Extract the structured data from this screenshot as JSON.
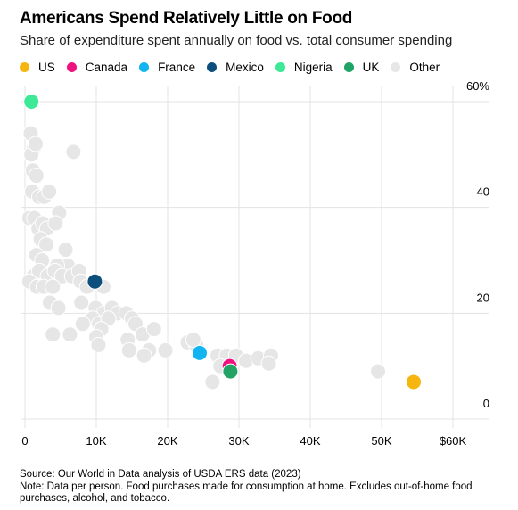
{
  "chart_data": {
    "type": "scatter",
    "title": "Americans Spend Relatively Little on Food",
    "subtitle": "Share of expenditure spent annually on food vs. total consumer spending",
    "xlabel": "",
    "ylabel": "",
    "xlim": [
      0,
      65000
    ],
    "ylim": [
      0,
      60
    ],
    "grid": true,
    "legend_position": "top-left",
    "x_ticks": [
      {
        "value": 0,
        "label": "0"
      },
      {
        "value": 10000,
        "label": "10K"
      },
      {
        "value": 20000,
        "label": "20K"
      },
      {
        "value": 30000,
        "label": "30K"
      },
      {
        "value": 40000,
        "label": "40K"
      },
      {
        "value": 50000,
        "label": "50K"
      },
      {
        "value": 60000,
        "label": "$60K"
      }
    ],
    "y_ticks": [
      {
        "value": 0,
        "label": "0"
      },
      {
        "value": 20,
        "label": "20"
      },
      {
        "value": 40,
        "label": "40"
      },
      {
        "value": 60,
        "label": "60%"
      }
    ],
    "series": [
      {
        "name": "Other",
        "color": "#e6e6e6",
        "points": [
          [
            800,
            54
          ],
          [
            1200,
            51
          ],
          [
            900,
            50
          ],
          [
            1500,
            52
          ],
          [
            1100,
            47
          ],
          [
            1600,
            46
          ],
          [
            6800,
            50.5
          ],
          [
            1000,
            43
          ],
          [
            2000,
            42
          ],
          [
            2700,
            42
          ],
          [
            3400,
            43
          ],
          [
            4800,
            39
          ],
          [
            600,
            38
          ],
          [
            1300,
            38
          ],
          [
            1900,
            36
          ],
          [
            2500,
            37
          ],
          [
            3100,
            36
          ],
          [
            4300,
            37
          ],
          [
            2200,
            34
          ],
          [
            3000,
            33
          ],
          [
            1600,
            31
          ],
          [
            2400,
            30
          ],
          [
            5700,
            32
          ],
          [
            6000,
            29
          ],
          [
            4500,
            29
          ],
          [
            1200,
            27
          ],
          [
            2000,
            28
          ],
          [
            3200,
            27
          ],
          [
            4200,
            28
          ],
          [
            5200,
            27
          ],
          [
            600,
            26
          ],
          [
            1700,
            25
          ],
          [
            2600,
            25
          ],
          [
            3900,
            25
          ],
          [
            6600,
            27
          ],
          [
            7600,
            28
          ],
          [
            7800,
            26
          ],
          [
            8700,
            25
          ],
          [
            11000,
            25
          ],
          [
            3500,
            22
          ],
          [
            4700,
            21
          ],
          [
            7900,
            22
          ],
          [
            9900,
            21
          ],
          [
            11100,
            20
          ],
          [
            12200,
            21
          ],
          [
            13000,
            20
          ],
          [
            9500,
            19
          ],
          [
            10400,
            18
          ],
          [
            11700,
            19
          ],
          [
            14200,
            20
          ],
          [
            15000,
            19
          ],
          [
            15500,
            18
          ],
          [
            8100,
            18
          ],
          [
            10700,
            17
          ],
          [
            3900,
            16
          ],
          [
            6300,
            16
          ],
          [
            10000,
            15.5
          ],
          [
            14400,
            15
          ],
          [
            16500,
            16
          ],
          [
            18100,
            17
          ],
          [
            10300,
            14
          ],
          [
            14600,
            13
          ],
          [
            17400,
            13
          ],
          [
            19700,
            13
          ],
          [
            16700,
            12
          ],
          [
            22800,
            14.5
          ],
          [
            24000,
            14
          ],
          [
            23600,
            15
          ],
          [
            27000,
            12
          ],
          [
            28300,
            12
          ],
          [
            29600,
            12
          ],
          [
            31000,
            11
          ],
          [
            32700,
            11.5
          ],
          [
            34500,
            12
          ],
          [
            34200,
            10.5
          ],
          [
            26300,
            7
          ],
          [
            27400,
            10
          ],
          [
            49500,
            9
          ]
        ]
      },
      {
        "name": "US",
        "color": "#f5b60f",
        "points": [
          [
            54500,
            7
          ]
        ]
      },
      {
        "name": "Canada",
        "color": "#ee117f",
        "points": [
          [
            28700,
            10
          ]
        ]
      },
      {
        "name": "France",
        "color": "#12b5f2",
        "points": [
          [
            24500,
            12.5
          ]
        ]
      },
      {
        "name": "Mexico",
        "color": "#0d4f7c",
        "points": [
          [
            9800,
            26
          ]
        ]
      },
      {
        "name": "Nigeria",
        "color": "#3de996",
        "points": [
          [
            900,
            60
          ]
        ]
      },
      {
        "name": "UK",
        "color": "#21a366",
        "points": [
          [
            28800,
            9
          ]
        ]
      }
    ]
  },
  "legend": [
    {
      "label": "US",
      "color": "#f5b60f"
    },
    {
      "label": "Canada",
      "color": "#ee117f"
    },
    {
      "label": "France",
      "color": "#12b5f2"
    },
    {
      "label": "Mexico",
      "color": "#0d4f7c"
    },
    {
      "label": "Nigeria",
      "color": "#3de996"
    },
    {
      "label": "UK",
      "color": "#21a366"
    },
    {
      "label": "Other",
      "color": "#e6e6e6"
    }
  ],
  "footer": {
    "source": "Source: Our World in Data analysis of USDA ERS data (2023)",
    "note": "Note: Data per person. Food purchases made for consumption at home. Excludes out-of-home food purchases, alcohol, and tobacco."
  }
}
